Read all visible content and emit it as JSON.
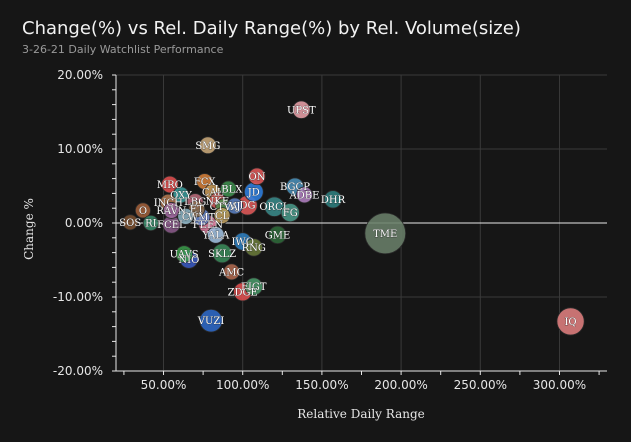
{
  "chart_data": {
    "type": "scatter",
    "title": "Change(%) vs Rel. Daily Range(%) by Rel. Volume(size)",
    "subtitle": "3-26-21 Daily Watchlist Performance",
    "xlabel": "Relative Daily Range",
    "ylabel": "Change %",
    "xlim": [
      20,
      330
    ],
    "ylim": [
      -20,
      20
    ],
    "x_ticks": [
      {
        "value": 50,
        "label": "50.00%"
      },
      {
        "value": 100,
        "label": "100.00%"
      },
      {
        "value": 150,
        "label": "150.00%"
      },
      {
        "value": 200,
        "label": "200.00%"
      },
      {
        "value": 250,
        "label": "250.00%"
      },
      {
        "value": 300,
        "label": "300.00%"
      }
    ],
    "y_ticks": [
      {
        "value": 20,
        "label": "20.00%"
      },
      {
        "value": 10,
        "label": "10.00%"
      },
      {
        "value": 0,
        "label": "0.00%"
      },
      {
        "value": -10,
        "label": "-10.00%"
      },
      {
        "value": -20,
        "label": "-20.00%"
      }
    ],
    "grid": true,
    "size_encodes": "relative volume",
    "points": [
      {
        "ticker": "UPST",
        "x": 137,
        "y": 15.3,
        "size": 1.2,
        "color": "#e8a0a8"
      },
      {
        "ticker": "SMG",
        "x": 78,
        "y": 10.5,
        "size": 1.1,
        "color": "#c9a97a"
      },
      {
        "ticker": "ON",
        "x": 109,
        "y": 6.3,
        "size": 1.1,
        "color": "#e05a5a"
      },
      {
        "ticker": "BGCP",
        "x": 133,
        "y": 4.9,
        "size": 1.2,
        "color": "#4a8fb8"
      },
      {
        "ticker": "MRO",
        "x": 54,
        "y": 5.2,
        "size": 1.1,
        "color": "#e05050"
      },
      {
        "ticker": "FCX",
        "x": 76,
        "y": 5.6,
        "size": 1.0,
        "color": "#d4803a"
      },
      {
        "ticker": "CAL",
        "x": 81,
        "y": 4.2,
        "size": 1.0,
        "color": "#c89a58"
      },
      {
        "ticker": "LBLX",
        "x": 91,
        "y": 4.6,
        "size": 1.0,
        "color": "#3f8f4f"
      },
      {
        "ticker": "JD",
        "x": 107,
        "y": 4.2,
        "size": 1.4,
        "color": "#2f7fe0"
      },
      {
        "ticker": "OXY",
        "x": 61,
        "y": 3.8,
        "size": 1.0,
        "color": "#3a9a9a"
      },
      {
        "ticker": "ADBE",
        "x": 139,
        "y": 3.8,
        "size": 1.0,
        "color": "#b080c0"
      },
      {
        "ticker": "DHR",
        "x": 157,
        "y": 3.2,
        "size": 1.2,
        "color": "#2f7f7f"
      },
      {
        "ticker": "NKE",
        "x": 84,
        "y": 3.0,
        "size": 1.0,
        "color": "#d05a5a"
      },
      {
        "ticker": "INCH",
        "x": 53,
        "y": 2.8,
        "size": 1.0,
        "color": "#b07850"
      },
      {
        "ticker": "LBG",
        "x": 70,
        "y": 2.9,
        "size": 1.0,
        "color": "#b86a7a"
      },
      {
        "ticker": "CTVA",
        "x": 88,
        "y": 2.2,
        "size": 1.0,
        "color": "#4a8a4a"
      },
      {
        "ticker": "VJ",
        "x": 95,
        "y": 2.3,
        "size": 1.0,
        "color": "#5a80c0"
      },
      {
        "ticker": "DG",
        "x": 103,
        "y": 2.4,
        "size": 1.5,
        "color": "#e05a5a"
      },
      {
        "ticker": "ORCL",
        "x": 120,
        "y": 2.2,
        "size": 1.5,
        "color": "#3a8a8a"
      },
      {
        "ticker": "FG",
        "x": 130,
        "y": 1.4,
        "size": 1.3,
        "color": "#4a9a8a"
      },
      {
        "ticker": "RAVN",
        "x": 55,
        "y": 1.7,
        "size": 1.0,
        "color": "#a06aa0"
      },
      {
        "ticker": "ET",
        "x": 71,
        "y": 1.9,
        "size": 1.0,
        "color": "#8a6a4a"
      },
      {
        "ticker": "O",
        "x": 37,
        "y": 1.7,
        "size": 0.9,
        "color": "#a0603a"
      },
      {
        "ticker": "WMT",
        "x": 74,
        "y": 0.8,
        "size": 1.1,
        "color": "#6a8ad0"
      },
      {
        "ticker": "CL",
        "x": 87,
        "y": 1.0,
        "size": 1.0,
        "color": "#c0a060"
      },
      {
        "ticker": "C",
        "x": 64,
        "y": 0.9,
        "size": 1.0,
        "color": "#8ab0c0"
      },
      {
        "ticker": "SOS",
        "x": 29,
        "y": 0.1,
        "size": 0.9,
        "color": "#7a5030"
      },
      {
        "ticker": "RI",
        "x": 42,
        "y": 0.0,
        "size": 0.9,
        "color": "#3a8a6a"
      },
      {
        "ticker": "FCEL",
        "x": 55,
        "y": -0.2,
        "size": 1.2,
        "color": "#8a5a8a"
      },
      {
        "ticker": "FEEN",
        "x": 78,
        "y": -0.2,
        "size": 1.3,
        "color": "#e080a0"
      },
      {
        "ticker": "TME",
        "x": 190,
        "y": -1.4,
        "size": 6.5,
        "color": "#6a7f6a"
      },
      {
        "ticker": "YALA",
        "x": 83,
        "y": -1.6,
        "size": 1.1,
        "color": "#a0c0e0"
      },
      {
        "ticker": "GME",
        "x": 122,
        "y": -1.6,
        "size": 1.2,
        "color": "#2f6a3a"
      },
      {
        "ticker": "IWO",
        "x": 100,
        "y": -2.5,
        "size": 1.2,
        "color": "#2f7fc0"
      },
      {
        "ticker": "RNG",
        "x": 107,
        "y": -3.3,
        "size": 1.2,
        "color": "#6a7a3a"
      },
      {
        "ticker": "SKLZ",
        "x": 87,
        "y": -4.1,
        "size": 1.4,
        "color": "#3a8a5a"
      },
      {
        "ticker": "UAVS",
        "x": 63,
        "y": -4.2,
        "size": 1.1,
        "color": "#3a9a4a"
      },
      {
        "ticker": "NIO",
        "x": 66,
        "y": -4.9,
        "size": 1.3,
        "color": "#3a5ac0"
      },
      {
        "ticker": "AMC",
        "x": 93,
        "y": -6.6,
        "size": 1.0,
        "color": "#b06a50"
      },
      {
        "ticker": "FIGT",
        "x": 107,
        "y": -8.6,
        "size": 1.2,
        "color": "#4a9a6a"
      },
      {
        "ticker": "ZDGE",
        "x": 100,
        "y": -9.3,
        "size": 1.3,
        "color": "#e05050"
      },
      {
        "ticker": "VUZI",
        "x": 80,
        "y": -13.2,
        "size": 2.0,
        "color": "#2f6ac8"
      },
      {
        "ticker": "IQ",
        "x": 307,
        "y": -13.3,
        "size": 2.9,
        "color": "#e08080"
      }
    ]
  }
}
